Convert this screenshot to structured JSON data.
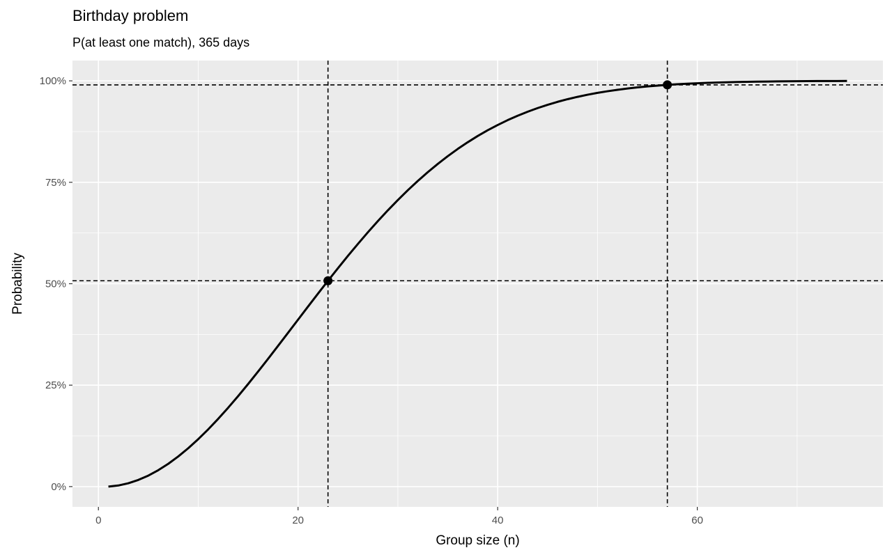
{
  "chart_data": {
    "type": "line",
    "title": "Birthday problem",
    "subtitle": "P(at least one match), 365 days",
    "xlabel": "Group size (n)",
    "ylabel": "Probability",
    "xlim": [
      -2.6,
      78.6
    ],
    "ylim": [
      -0.05,
      1.05
    ],
    "x_ticks": [
      0,
      20,
      40,
      60
    ],
    "x_tick_labels": [
      "0",
      "20",
      "40",
      "60"
    ],
    "x_minor": [
      10,
      30,
      50,
      70
    ],
    "y_ticks": [
      0,
      0.25,
      0.5,
      0.75,
      1.0
    ],
    "y_tick_labels": [
      "0%",
      "25%",
      "50%",
      "75%",
      "100%"
    ],
    "y_minor": [
      0.125,
      0.375,
      0.625,
      0.875
    ],
    "panel_background": "#ebebeb",
    "grid_color": "#ffffff",
    "line_color": "#000000",
    "series": [
      {
        "x": [
          1,
          2,
          3,
          4,
          5,
          6,
          7,
          8,
          9,
          10,
          11,
          12,
          13,
          14,
          15,
          16,
          17,
          18,
          19,
          20,
          21,
          22,
          23,
          24,
          25,
          26,
          27,
          28,
          29,
          30,
          31,
          32,
          33,
          34,
          35,
          36,
          37,
          38,
          39,
          40,
          41,
          42,
          43,
          44,
          45,
          46,
          47,
          48,
          49,
          50,
          51,
          52,
          53,
          54,
          55,
          56,
          57,
          58,
          59,
          60,
          61,
          62,
          63,
          64,
          65,
          66,
          67,
          68,
          69,
          70,
          71,
          72,
          73,
          74,
          75
        ],
        "y": [
          0,
          0.0027,
          0.0082,
          0.0164,
          0.0271,
          0.0405,
          0.0562,
          0.0743,
          0.0946,
          0.1169,
          0.1411,
          0.167,
          0.1944,
          0.2231,
          0.2529,
          0.2836,
          0.315,
          0.3469,
          0.3791,
          0.4114,
          0.4437,
          0.4757,
          0.5073,
          0.5383,
          0.5687,
          0.5982,
          0.6269,
          0.6545,
          0.681,
          0.7063,
          0.7305,
          0.7533,
          0.775,
          0.7953,
          0.8144,
          0.8322,
          0.8487,
          0.8641,
          0.8782,
          0.8912,
          0.9032,
          0.914,
          0.9239,
          0.9329,
          0.941,
          0.9483,
          0.9548,
          0.9606,
          0.9658,
          0.9704,
          0.9744,
          0.978,
          0.9811,
          0.9839,
          0.9863,
          0.9883,
          0.9901,
          0.9917,
          0.993,
          0.9941,
          0.9951,
          0.9959,
          0.9966,
          0.9972,
          0.9977,
          0.9981,
          0.9984,
          0.9987,
          0.999,
          0.9992,
          0.9993,
          0.9995,
          0.9996,
          0.9996,
          0.9997
        ]
      }
    ],
    "threshold_points": [
      {
        "x": 23,
        "y": 0.5073
      },
      {
        "x": 57,
        "y": 0.9901
      }
    ]
  }
}
